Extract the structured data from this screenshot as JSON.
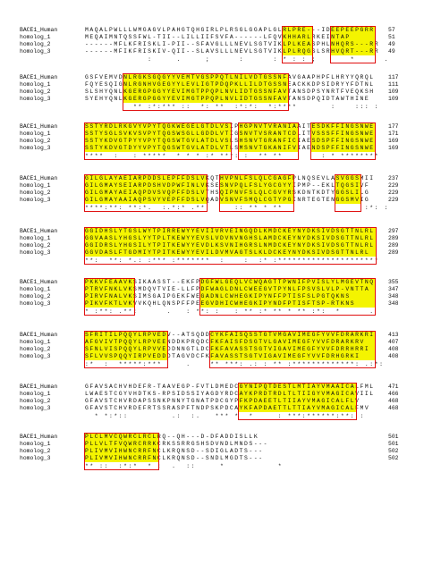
{
  "colors": {
    "highlight": "#f4f400",
    "box": "#e01010",
    "text": "#111111"
  },
  "blocks": [
    {
      "rows": [
        {
          "name": "BACE1_Human",
          "seq": "MAQALPWLLLWMGAGVLPAHGTQHGIRLPLRSGLGGAPLGLRLPRE---IDEEPEEPGRR",
          "num": "57"
        },
        {
          "name": "homolog_1",
          "seq": "MEQAIMNTQSSFWL-TII--LILLIIFSVFA------LFQVKHHARLRKEINTAP",
          "num": "51"
        },
        {
          "name": "homolog_2",
          "seq": "------MFLKFRISKLI-PII--SFAVGLLLNEVLSGTVIKLPLKEASPHLNHQRS---RR",
          "num": "49"
        },
        {
          "name": "homolog_3",
          "seq": "------MFIKFRISKIV-QII--SLAVSLLLNEVLSGTVIKLPLRQGSLSRHVQRT---RR",
          "num": "49"
        }
      ],
      "cons": "             :     .     ;      :      : * : : ;       *      ."
    },
    {
      "rows": [
        {
          "name": "BACE1_Human",
          "seq": "GSFVEMVDNLRGKSGQGYYVEMTVGSPPQTLNILVDTGSSNFAVGAAPHPFLHRYYQRQL",
          "num": "117"
        },
        {
          "name": "homolog_1",
          "seq": "FQYESQIGNLRGNHVGEGYYLEVLIGTPDQPKLLILDTGSSNEACKKDPSIDRYYFDTNL",
          "num": "111"
        },
        {
          "name": "homolog_2",
          "seq": "SLSHYQNLKGERGPGGYYEVIMGTPPQPLNVLIDTGSSNFAVTANSDPSYNRTFVEQKSH",
          "num": "109"
        },
        {
          "name": "homolog_3",
          "seq": "SYEHYQNLKGERGPGGYYEVIMGTPPQPLNVLIDTGSSNFAVTANSDPQIDTAWTHINE",
          "num": "109"
        }
      ],
      "cons": "          ** :*:*** ::  *: **  :*:*:  *:****       :    ::: :"
    },
    {
      "rows": [
        {
          "name": "BACE1_Human",
          "seq": "SSTYRDLRKGVYVPYTQGKWEGELGTDLVSIPHGPNVTVRANIAAITESDKFFINGSNWE",
          "num": "177"
        },
        {
          "name": "homolog_1",
          "seq": "SSTYSGLSVKVSVPYTQGSWSGLLGDDLVTIGSNVTVSRANTCDLITVSSSFFINGSNWE",
          "num": "171"
        },
        {
          "name": "homolog_2",
          "seq": "SSTYKDVGTPYYVPYTQGSWTGVLATDLVSLSHSNVTGRANFICIAESDSPFFINGSNWE",
          "num": "169"
        },
        {
          "name": "homolog_3",
          "seq": "SSTYKDVGTDYYVPYTQGSWTGVLATDLVTLSMSNVTGKANIFVIAENDSPFFINGSNWE",
          "num": "169"
        }
      ],
      "cons": "****  :   : *****  * * * :* ***: :  ** **        : * ********"
    },
    {
      "rows": [
        {
          "name": "BACE1_Human",
          "seq": "GILGLAYAEIARPDDSLEPFFDSLVKQTHVPNLFSLQLCGAGFPLNQSEVLASVGGSMII",
          "num": "237"
        },
        {
          "name": "homolog_1",
          "seq": "GILGMAYSEIARPDSHVDPWFINLVKSESNVPQLFSLYGCGYYIPMP--EKLTQGSIVF",
          "num": "229"
        },
        {
          "name": "homolog_2",
          "seq": "GILGMAYAEIAQPDVSVQPFFDSLVTHSQIPNVFSLQLCGVYRSKDNTKDTYGGSLILG",
          "num": "229"
        },
        {
          "name": "homolog_3",
          "seq": "GILGMAYAAIAQPSVYVEPFFDSLVQADVSNVFSMQLCGTYPGINRTEGTENGGSMVIG",
          "num": "229"
        }
      ],
      "cons": "****:**: **:*.  :.*:* .**      :: ** * **                 :*: :"
    },
    {
      "rows": [
        {
          "name": "BACE1_Human",
          "seq": "GGIDHSLYTGSLWYTPIRREWYYEVIIVRVEINGQDLKMDCKEYNYDKSIVDSGTTNLRL",
          "num": "297"
        },
        {
          "name": "homolog_1",
          "seq": "GGVAASLYHGSLYYTPLTKEWYYEVSLVDVNVNGHSLAMDCKEYNYDKSIVDSGTTNLRL",
          "num": "289"
        },
        {
          "name": "homolog_2",
          "seq": "GGIDRSLYHGSILYTPITKEWYYEVDLKSVNIHGRSLNMDCKEYNYDKSIVDSGTTNLRL",
          "num": "289"
        },
        {
          "name": "homolog_3",
          "seq": "GGVDASLFTGDMIYTPITKEWYYEVILDVMVAGTSLKLDCKEYNYDKSIVDSGTTNLRL",
          "num": "289"
        }
      ],
      "cons": "**:  **: *.: :*** :*******  :    :  :* :*********************"
    },
    {
      "rows": [
        {
          "name": "BACE1_Human",
          "seq": "PKKVFEAAVKSIKAASST--EKFPDGFWLGEQLVCWQAGTTPWNIFPVISLYLMGEVTNQ",
          "num": "355"
        },
        {
          "name": "homolog_1",
          "seq": "PTRVFNKLVKSMDQVTVIE-LLFPDFWAGLDNLCWEEGVTPYNLFPSVSLVLP-VNTTA",
          "num": "347"
        },
        {
          "name": "homolog_2",
          "seq": "PIRVFNALVKSIMSGAIPGEKFWEGADNLCWHEGKIPYNFFPTISFSLPGTQKNS",
          "num": "348"
        },
        {
          "name": "homolog_3",
          "seq": "PIKVFKTLVKVVKQHLQNSPFFPEEGVDHICWHEGKIPYNDFPTISFTSP-RTKNS",
          "num": "348"
        }
      ],
      "cons": "* :**: .**:      .   : **: :   : ** :* ** * ** :*:  *      ."
    },
    {
      "rows": [
        {
          "name": "BACE1_Human",
          "seq": "SFRITILPQQYLRPVEDV--ATSQDDCYKFAISQSSTGTVMGAVIMEGFYVVFDRARKRI",
          "num": "413"
        },
        {
          "name": "homolog_1",
          "seq": "AFGVIVTPQQYLRPVEENDDKPRQDCFKFAISFDSGTVLGAVIMEGFYVVFDRARKRV",
          "num": "407"
        },
        {
          "name": "homolog_2",
          "seq": "SFNLVISPQQYLRPVVEDDNNGTLDCFKFAVASSTSGTVIGAVIMEGFYVVFDRRHRRI",
          "num": "408"
        },
        {
          "name": "homolog_3",
          "seq": "SFLVVSPQQYIRPVEDDDTAGVDCFKFAVASSTSGTVIGAVIMEGFYVVFDRHGRKI",
          "num": "408"
        }
      ],
      "cons": ":*  :  *****:***     .    ** ***: .: : ** :*************: .:*:"
    },
    {
      "rows": [
        {
          "name": "BACE1_Human",
          "seq": "GFAVSACHVHDEFR-TAAVEGP-FVTLDMEDCGYNIPQTDESTLMTIAYVMAAICALFML",
          "num": "471"
        },
        {
          "name": "homolog_1",
          "seq": "LWAESTCGYVHDTKS-RPSIDSSIYAGDYRDCAYKPRDTRDLTLTIIGYVMAGICAVIIL",
          "num": "466"
        },
        {
          "name": "homolog_2",
          "seq": "GFAVSTCHVRDAPSSNKPNNYTGNATPDCGYPFKPDAEETLTIIAYVMAGICALFLV",
          "num": "468"
        },
        {
          "name": "homolog_3",
          "seq": "GFAVSTCHVRDEFRTSSRASPFTNDPSKPDCAYKFAPDAETTLTTIAYVMAGICALFMV",
          "num": "468"
        }
      ],
      "cons": "  * *:*::         .:  :.   *** *  *     : ***:******:**: :"
    },
    {
      "rows": [
        {
          "name": "BACE1_Human",
          "seq": "PLCLMVCQWRCLRCLRQ--QH---D-DFADDISLLK",
          "num": "501"
        },
        {
          "name": "homolog_1",
          "seq": "PLLVLTFVQWRCRRKCRKSSRRGSHSDVNDLMNDS---",
          "num": "501"
        },
        {
          "name": "homolog_2",
          "seq": "PLIVMVIHWNCRRFNCLKRQNSD--SDIGLADTS---",
          "num": "502"
        },
        {
          "name": "homolog_3",
          "seq": "PLIVMVIHWNCRRFNCLKRQNSD--SNDLMGDTS---",
          "num": "502"
        }
      ],
      "cons": "** ::  :*:*  * :  .  ::     *           *"
    }
  ],
  "boxes": [
    {
      "block": 0,
      "from": 41,
      "to": 47
    },
    {
      "block": 0,
      "from": 51,
      "to": 60
    },
    {
      "block": 1,
      "from": 8,
      "to": 42
    },
    {
      "block": 2,
      "from": 0,
      "to": 30
    },
    {
      "block": 2,
      "from": 32,
      "to": 44
    },
    {
      "block": 2,
      "from": 47,
      "to": 60
    },
    {
      "block": 3,
      "from": 0,
      "to": 25
    },
    {
      "block": 3,
      "from": 28,
      "to": 43
    },
    {
      "block": 3,
      "from": 52,
      "to": 57
    },
    {
      "block": 4,
      "from": 0,
      "to": 60
    },
    {
      "block": 5,
      "from": 0,
      "to": 10
    },
    {
      "block": 5,
      "from": 24,
      "to": 60
    },
    {
      "block": 6,
      "from": 0,
      "to": 17
    },
    {
      "block": 6,
      "from": 26,
      "to": 60
    },
    {
      "block": 7,
      "from": 32,
      "to": 56
    },
    {
      "block": 8,
      "from": 0,
      "to": 15
    }
  ]
}
